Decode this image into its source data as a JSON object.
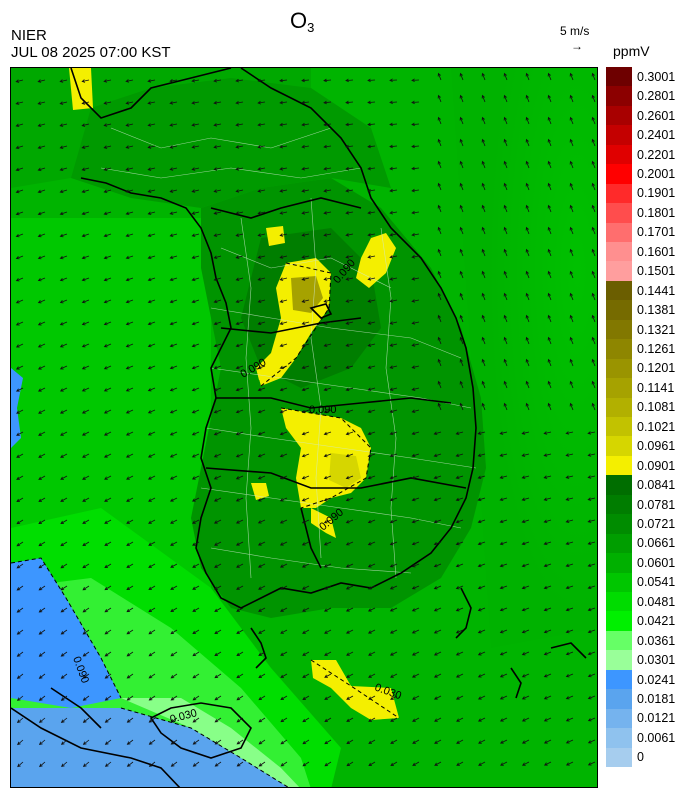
{
  "header": {
    "org": "NIER",
    "datetime": "JUL 08 2025 07:00 KST",
    "title_main": "O",
    "title_sub": "3",
    "wind_scale_label": "5 m/s",
    "wind_scale_arrow": "→",
    "unit": "ppmV"
  },
  "contour_labels": [
    "0.090",
    "0.090",
    "0.090",
    "0.090",
    "0.030",
    "0.030",
    "0.090"
  ],
  "legend": {
    "levels": [
      {
        "label": "0.3001",
        "color": "#6e0000"
      },
      {
        "label": "0.2801",
        "color": "#8c0000"
      },
      {
        "label": "0.2601",
        "color": "#a80000"
      },
      {
        "label": "0.2401",
        "color": "#c40000"
      },
      {
        "label": "0.2201",
        "color": "#e00000"
      },
      {
        "label": "0.2001",
        "color": "#ff0000"
      },
      {
        "label": "0.1901",
        "color": "#ff2a2a"
      },
      {
        "label": "0.1801",
        "color": "#ff4d4d"
      },
      {
        "label": "0.1701",
        "color": "#ff6e6e"
      },
      {
        "label": "0.1601",
        "color": "#ff8f8f"
      },
      {
        "label": "0.1501",
        "color": "#ff9e9e"
      },
      {
        "label": "0.1441",
        "color": "#6b5e00"
      },
      {
        "label": "0.1381",
        "color": "#766b00"
      },
      {
        "label": "0.1321",
        "color": "#827800"
      },
      {
        "label": "0.1261",
        "color": "#8e8600"
      },
      {
        "label": "0.1201",
        "color": "#9a9400"
      },
      {
        "label": "0.1141",
        "color": "#a6a200"
      },
      {
        "label": "0.1081",
        "color": "#b2b000"
      },
      {
        "label": "0.1021",
        "color": "#c2c200"
      },
      {
        "label": "0.0961",
        "color": "#d6d600"
      },
      {
        "label": "0.0901",
        "color": "#f4ef00"
      },
      {
        "label": "0.0841",
        "color": "#006e00"
      },
      {
        "label": "0.0781",
        "color": "#007d00"
      },
      {
        "label": "0.0721",
        "color": "#008c00"
      },
      {
        "label": "0.0661",
        "color": "#009e00"
      },
      {
        "label": "0.0601",
        "color": "#00b000"
      },
      {
        "label": "0.0541",
        "color": "#00c600"
      },
      {
        "label": "0.0481",
        "color": "#00dc00"
      },
      {
        "label": "0.0421",
        "color": "#00f000"
      },
      {
        "label": "0.0361",
        "color": "#66ff66"
      },
      {
        "label": "0.0301",
        "color": "#99ff99"
      },
      {
        "label": "0.0241",
        "color": "#3d96ff"
      },
      {
        "label": "0.0181",
        "color": "#5aa4ee"
      },
      {
        "label": "0.0121",
        "color": "#75b3ee"
      },
      {
        "label": "0.0061",
        "color": "#8fc2ee"
      },
      {
        "label": "0",
        "color": "#a6cdee"
      }
    ]
  }
}
